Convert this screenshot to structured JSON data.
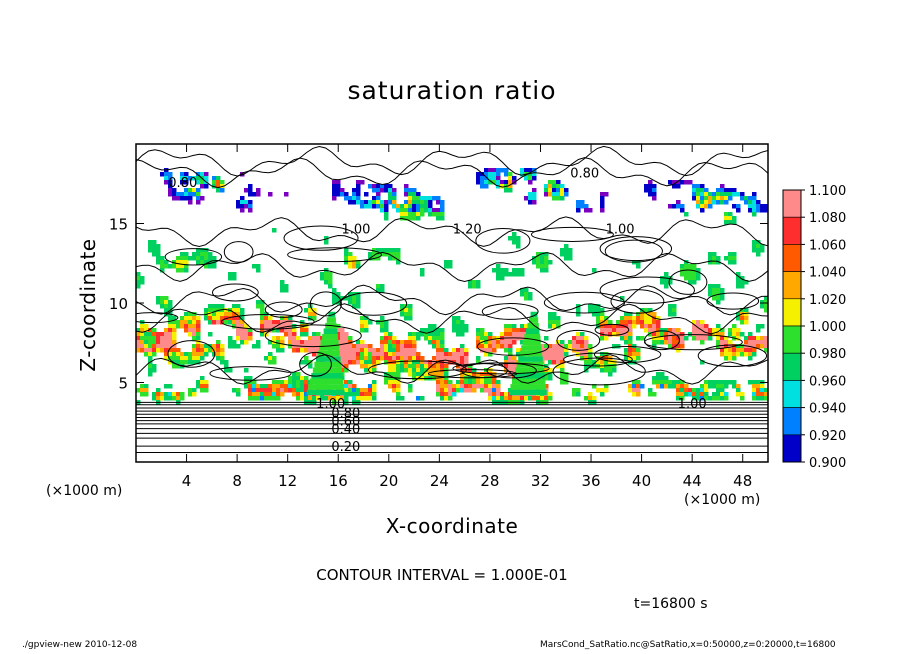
{
  "chart_data": {
    "type": "heatmap",
    "title": "saturation ratio",
    "xlabel": "X-coordinate",
    "ylabel": "Z-coordinate",
    "x_unit_labels": [
      "(×1000 m)",
      "(×1000 m)"
    ],
    "xlim": [
      0,
      50
    ],
    "ylim": [
      0,
      20
    ],
    "x_ticks": [
      4,
      8,
      12,
      16,
      20,
      24,
      28,
      32,
      36,
      40,
      44,
      48
    ],
    "y_ticks": [
      5,
      10,
      15
    ],
    "colorbar": {
      "values": [
        1.1,
        1.08,
        1.06,
        1.04,
        1.02,
        1.0,
        0.98,
        0.96,
        0.94,
        0.92,
        0.9
      ],
      "labels": [
        "1.100",
        "1.080",
        "1.060",
        "1.040",
        "1.020",
        "1.000",
        "0.980",
        "0.960",
        "0.940",
        "0.920",
        "0.900"
      ],
      "colors": [
        "#ff8a8a",
        "#ff2e2e",
        "#ff5a00",
        "#ffa800",
        "#f5f000",
        "#2ee02e",
        "#00d060",
        "#00e0e0",
        "#0080ff",
        "#0000c8",
        "#7a00c0"
      ]
    },
    "contour_labels": [
      {
        "text": "0.80",
        "x": 3.7,
        "z": 17.6
      },
      {
        "text": "0.80",
        "x": 35.5,
        "z": 18.2
      },
      {
        "text": "1.00",
        "x": 17.4,
        "z": 14.7
      },
      {
        "text": "1.20",
        "x": 26.2,
        "z": 14.7
      },
      {
        "text": "1.00",
        "x": 38.3,
        "z": 14.7
      },
      {
        "text": "1.00",
        "x": 15.4,
        "z": 3.7
      },
      {
        "text": "0.80",
        "x": 16.6,
        "z": 3.1
      },
      {
        "text": "0.60",
        "x": 16.6,
        "z": 2.6
      },
      {
        "text": "0.40",
        "x": 16.6,
        "z": 2.1
      },
      {
        "text": "0.20",
        "x": 16.6,
        "z": 1.0
      },
      {
        "text": "1.00",
        "x": 44.0,
        "z": 3.7
      }
    ]
  },
  "contour_interval": "CONTOUR INTERVAL = 1.000E-01",
  "time_label": "t=16800 s",
  "footer": {
    "left": "./gpview-new   2010-12-08",
    "right": "MarsCond_SatRatio.nc@SatRatio,x=0:50000,z=0:20000,t=16800"
  }
}
